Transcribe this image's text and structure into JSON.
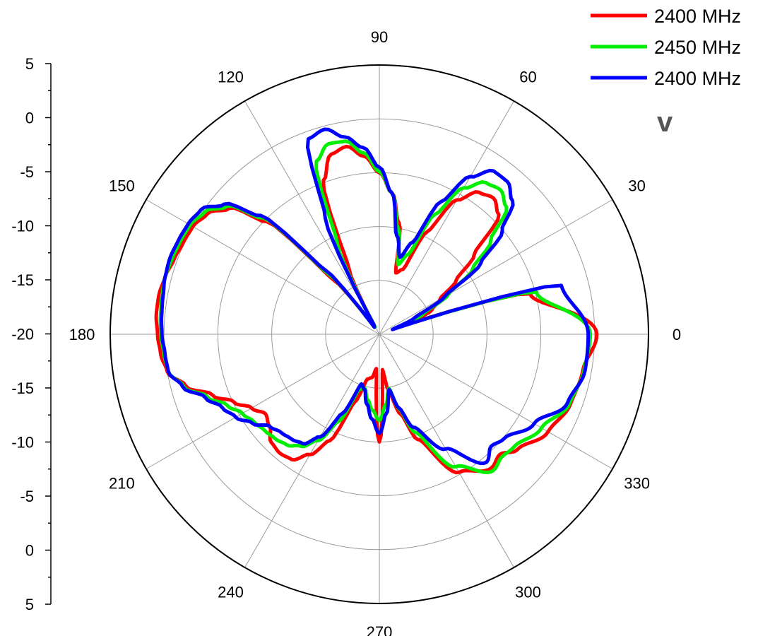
{
  "chart_data": {
    "type": "polar-line",
    "panel_label": "v",
    "radial_axis": {
      "tick_labels": [
        "5",
        "0",
        "-5",
        "-10",
        "-15",
        "-20",
        "-15",
        "-10",
        "-5",
        "0",
        "5"
      ],
      "range": [
        -20,
        5
      ],
      "unit": ""
    },
    "angle_labels": [
      "0",
      "30",
      "60",
      "90",
      "120",
      "150",
      "180",
      "210",
      "240",
      "270",
      "300",
      "330"
    ],
    "grid": true,
    "legend": {
      "placement": "top-right",
      "entries": [
        "2400 MHz",
        "2450 MHz",
        "2400 MHz"
      ]
    },
    "angles": [
      0,
      15,
      20,
      25,
      30,
      35,
      40,
      45,
      50,
      55,
      60,
      65,
      70,
      75,
      80,
      85,
      90,
      95,
      100,
      105,
      110,
      115,
      120,
      125,
      130,
      135,
      140,
      145,
      150,
      155,
      160,
      165,
      170,
      175,
      180,
      185,
      190,
      195,
      200,
      205,
      210,
      215,
      220,
      225,
      230,
      235,
      240,
      245,
      250,
      255,
      260,
      265,
      270,
      275,
      280,
      285,
      290,
      300,
      310,
      315,
      320,
      330,
      340,
      350,
      360
    ],
    "series": [
      {
        "name": "2400 MHz",
        "color": "#ff0000",
        "values": [
          0.2,
          -5.5,
          -17,
          -14.6,
          -13.5,
          -11.3,
          -8.5,
          -4.3,
          -3.5,
          -3.9,
          -5.6,
          -9.5,
          -13.6,
          -14.1,
          -9.5,
          -6.8,
          -5,
          -3.4,
          -2.3,
          -2.7,
          -4.8,
          -13.4,
          -19.2,
          -19.2,
          -13.5,
          -5.2,
          -1.8,
          -0.5,
          0,
          0.1,
          0.3,
          0.6,
          0.8,
          0.8,
          0.6,
          0.4,
          0,
          -1.4,
          -3.5,
          -5.1,
          -6.3,
          -7.1,
          -6.7,
          -5.8,
          -5.6,
          -5.8,
          -7.1,
          -9.1,
          -13.3,
          -15.7,
          -15.9,
          -16.8,
          -10,
          -16.7,
          -14.4,
          -12.3,
          -9.6,
          -5.2,
          -3.8,
          -4.2,
          -3.3,
          -1.9,
          -1.1,
          -0.8,
          0.2
        ]
      },
      {
        "name": "2450 MHz",
        "color": "#00ee00",
        "values": [
          -0.4,
          -4.9,
          -18,
          -15.5,
          -12.6,
          -9.4,
          -6.5,
          -3.3,
          -2.5,
          -2.8,
          -4.3,
          -7.7,
          -12.1,
          -13.3,
          -10,
          -6.8,
          -4.9,
          -3.1,
          -1.8,
          -1.7,
          -2.9,
          -10.8,
          -19.2,
          -19.2,
          -12.8,
          -4.7,
          -1.5,
          -0.2,
          0.3,
          0.4,
          0.5,
          0.6,
          0.5,
          0.4,
          0.3,
          0.1,
          -0.1,
          -1.2,
          -3,
          -4.4,
          -5.3,
          -5.8,
          -6.1,
          -6.3,
          -6.6,
          -7.3,
          -8.6,
          -11.1,
          -14.6,
          -14.8,
          -13.8,
          -12.9,
          -12,
          -13.4,
          -14.9,
          -12.8,
          -10.3,
          -5.8,
          -3.5,
          -3.9,
          -3.7,
          -2.6,
          -1.2,
          -0.7,
          -0.4
        ]
      },
      {
        "name": "2400 MHz",
        "color": "#0000ff",
        "values": [
          -0.6,
          -2.5,
          -18.7,
          -16.4,
          -13,
          -8.5,
          -5.1,
          -2.5,
          -1.5,
          -1.5,
          -3.1,
          -6.4,
          -10.9,
          -12.6,
          -10.7,
          -6.8,
          -4.5,
          -2.6,
          -1.4,
          -0.3,
          -0.7,
          -8.1,
          -19,
          -19.2,
          -12.3,
          -4.4,
          -1.2,
          0.2,
          0.5,
          0.6,
          0.7,
          0.6,
          0.4,
          0.3,
          0.2,
          0,
          -0.1,
          -1.1,
          -2.8,
          -3.9,
          -4.6,
          -5.6,
          -6.7,
          -7.1,
          -7.3,
          -7.6,
          -9,
          -11.9,
          -15.1,
          -14.7,
          -13.4,
          -12.1,
          -10.8,
          -12.6,
          -14.8,
          -12.9,
          -10.8,
          -7.7,
          -4.5,
          -5.3,
          -4.9,
          -3.4,
          -1.4,
          -0.6,
          -0.6
        ]
      }
    ]
  }
}
